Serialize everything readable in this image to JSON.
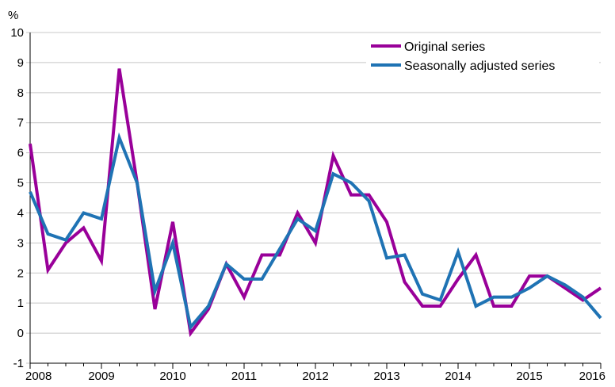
{
  "chart_data": {
    "type": "line",
    "ylabel": "%",
    "ylim": [
      -1,
      10
    ],
    "yticks": [
      -1,
      0,
      1,
      2,
      3,
      4,
      5,
      6,
      7,
      8,
      9,
      10
    ],
    "xlim": [
      2008,
      2016
    ],
    "xticks": [
      "2008",
      "2009",
      "2010",
      "2011",
      "2012",
      "2013",
      "2014",
      "2015",
      "2016"
    ],
    "grid": true,
    "legend_position": "top-right",
    "x": [
      2008.0,
      2008.25,
      2008.5,
      2008.75,
      2009.0,
      2009.25,
      2009.5,
      2009.75,
      2010.0,
      2010.25,
      2010.5,
      2010.75,
      2011.0,
      2011.25,
      2011.5,
      2011.75,
      2012.0,
      2012.25,
      2012.5,
      2012.75,
      2013.0,
      2013.25,
      2013.5,
      2013.75,
      2014.0,
      2014.25,
      2014.5,
      2014.75,
      2015.0,
      2015.25,
      2015.5,
      2015.75,
      2016.0
    ],
    "series": [
      {
        "name": "Original series",
        "color": "#990099",
        "values": [
          6.3,
          2.1,
          3.0,
          3.5,
          2.4,
          8.8,
          5.0,
          0.8,
          3.7,
          0.0,
          0.8,
          2.3,
          1.2,
          2.6,
          2.6,
          4.0,
          3.0,
          5.9,
          4.6,
          4.6,
          3.7,
          1.7,
          0.9,
          0.9,
          1.8,
          2.6,
          0.9,
          0.9,
          1.9,
          1.9,
          1.5,
          1.1,
          1.5
        ]
      },
      {
        "name": "Seasonally adjusted series",
        "color": "#1f73b4",
        "values": [
          4.7,
          3.3,
          3.1,
          4.0,
          3.8,
          6.5,
          5.0,
          1.4,
          3.0,
          0.2,
          0.9,
          2.3,
          1.8,
          1.8,
          2.8,
          3.8,
          3.4,
          5.3,
          5.0,
          4.4,
          2.5,
          2.6,
          1.3,
          1.1,
          2.7,
          0.9,
          1.2,
          1.2,
          1.5,
          1.9,
          1.6,
          1.2,
          0.5
        ]
      }
    ]
  }
}
